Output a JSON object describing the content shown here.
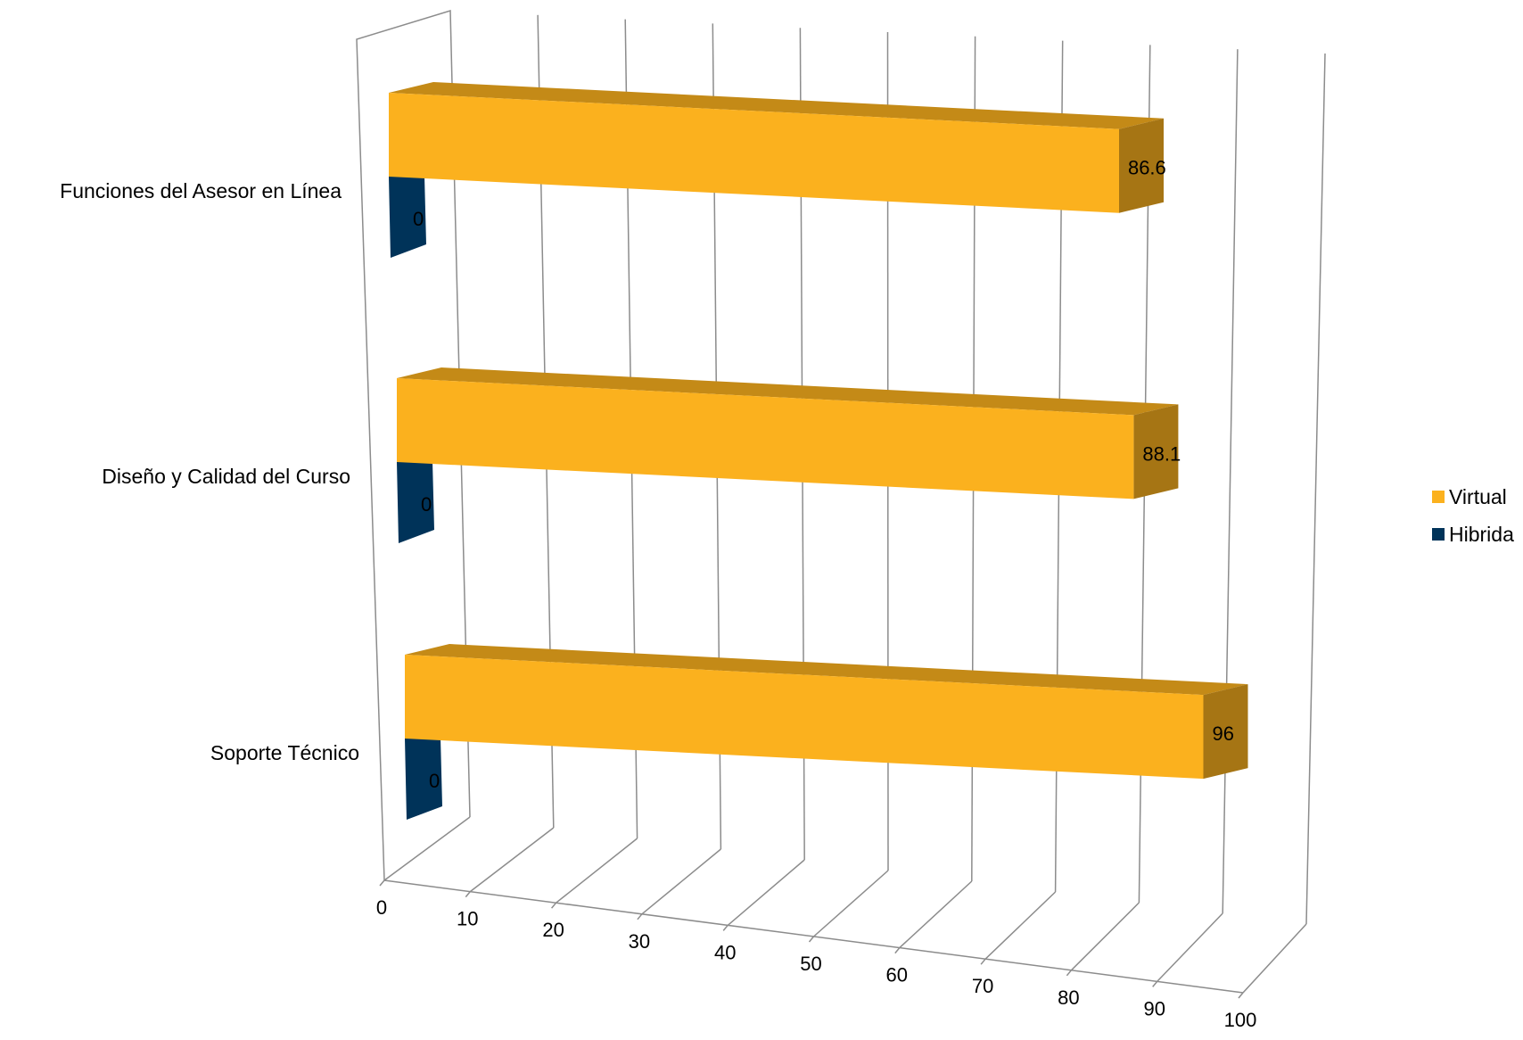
{
  "chart_data": {
    "type": "bar",
    "orientation": "horizontal",
    "style": "3d",
    "categories": [
      "Funciones del Asesor en Línea",
      "Diseño y Calidad del Curso",
      "Soporte Técnico"
    ],
    "series": [
      {
        "name": "Virtual",
        "values": [
          86.6,
          88.1,
          96
        ],
        "color": "#FBB11E"
      },
      {
        "name": "Hibrida",
        "values": [
          0,
          0,
          0
        ],
        "color": "#003359"
      }
    ],
    "data_labels": {
      "Virtual": [
        "86.6",
        "88.1",
        "96"
      ],
      "Hibrida": [
        "0",
        "0",
        "0"
      ]
    },
    "x_ticks": [
      "0",
      "10",
      "20",
      "30",
      "40",
      "50",
      "60",
      "70",
      "80",
      "90",
      "100"
    ],
    "xlim": [
      0,
      100
    ],
    "grid": true,
    "legend_position": "right"
  }
}
